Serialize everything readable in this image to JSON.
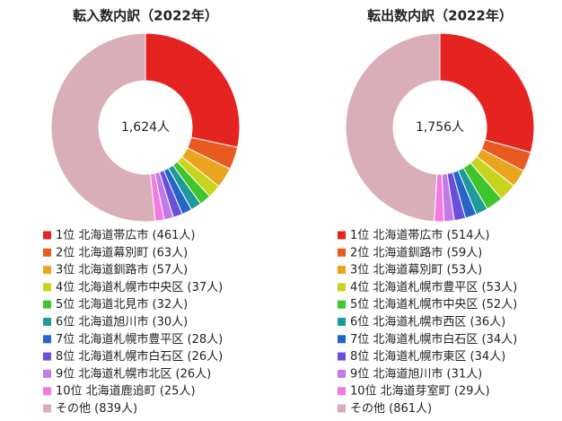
{
  "chart_data": [
    {
      "type": "pie",
      "title": "転入数内訳（2022年）",
      "center_label": "1,624人",
      "categories": [
        "1位 北海道帯広市",
        "2位 北海道幕別町",
        "3位 北海道釧路市",
        "4位 北海道札幌市中央区",
        "5位 北海道北見市",
        "6位 北海道旭川市",
        "7位 北海道札幌市豊平区",
        "8位 北海道札幌市白石区",
        "9位 北海道札幌市北区",
        "10位 北海道鹿追町",
        "その他"
      ],
      "values": [
        461,
        63,
        57,
        37,
        32,
        30,
        28,
        26,
        26,
        25,
        839
      ],
      "value_labels": [
        "(461人)",
        "(63人)",
        "(57人)",
        "(37人)",
        "(32人)",
        "(30人)",
        "(28人)",
        "(26人)",
        "(26人)",
        "(25人)",
        "(839人)"
      ],
      "colors": [
        "#e52421",
        "#e85a20",
        "#eba41e",
        "#c8d31c",
        "#3ec52c",
        "#1e9a9a",
        "#2465c8",
        "#6a4fd8",
        "#c27ae8",
        "#f27ae0",
        "#d9aeb8"
      ]
    },
    {
      "type": "pie",
      "title": "転出数内訳（2022年）",
      "center_label": "1,756人",
      "categories": [
        "1位 北海道帯広市",
        "2位 北海道釧路市",
        "3位 北海道幕別町",
        "4位 北海道札幌市豊平区",
        "5位 北海道札幌市中央区",
        "6位 北海道札幌市西区",
        "7位 北海道札幌市白石区",
        "8位 北海道札幌市東区",
        "9位 北海道旭川市",
        "10位 北海道芽室町",
        "その他"
      ],
      "values": [
        514,
        59,
        53,
        53,
        52,
        36,
        34,
        34,
        31,
        29,
        861
      ],
      "value_labels": [
        "(514人)",
        "(59人)",
        "(53人)",
        "(53人)",
        "(52人)",
        "(36人)",
        "(34人)",
        "(34人)",
        "(31人)",
        "(29人)",
        "(861人)"
      ],
      "colors": [
        "#e52421",
        "#e85a20",
        "#eba41e",
        "#c8d31c",
        "#3ec52c",
        "#1e9a9a",
        "#2465c8",
        "#6a4fd8",
        "#c27ae8",
        "#f27ae0",
        "#d9aeb8"
      ]
    }
  ]
}
